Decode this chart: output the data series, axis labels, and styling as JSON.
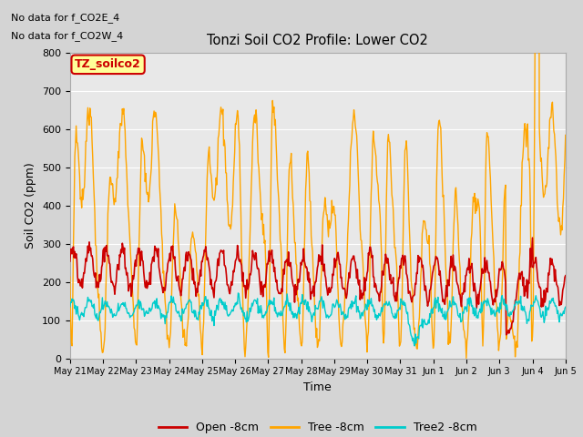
{
  "title": "Tonzi Soil CO2 Profile: Lower CO2",
  "xlabel": "Time",
  "ylabel": "Soil CO2 (ppm)",
  "ylim": [
    0,
    800
  ],
  "yticks": [
    0,
    100,
    200,
    300,
    400,
    500,
    600,
    700,
    800
  ],
  "fig_bg_color": "#d4d4d4",
  "plot_bg_color": "#e8e8e8",
  "no_data_text_1": "No data for f_CO2E_4",
  "no_data_text_2": "No data for f_CO2W_4",
  "legend_label": "TZ_soilco2",
  "legend_label_color": "#cc0000",
  "legend_label_bg": "#ffff99",
  "series": {
    "open_8cm": {
      "label": "Open -8cm",
      "color": "#cc0000"
    },
    "tree_8cm": {
      "label": "Tree -8cm",
      "color": "#ffa500"
    },
    "tree2_8cm": {
      "label": "Tree2 -8cm",
      "color": "#00cccc"
    }
  },
  "x_tick_labels": [
    "May 21",
    "May 22",
    "May 23",
    "May 24",
    "May 25",
    "May 26",
    "May 27",
    "May 28",
    "May 29",
    "May 30",
    "May 31",
    "Jun 1",
    "Jun 2",
    "Jun 3",
    "Jun 4",
    "Jun 5"
  ]
}
